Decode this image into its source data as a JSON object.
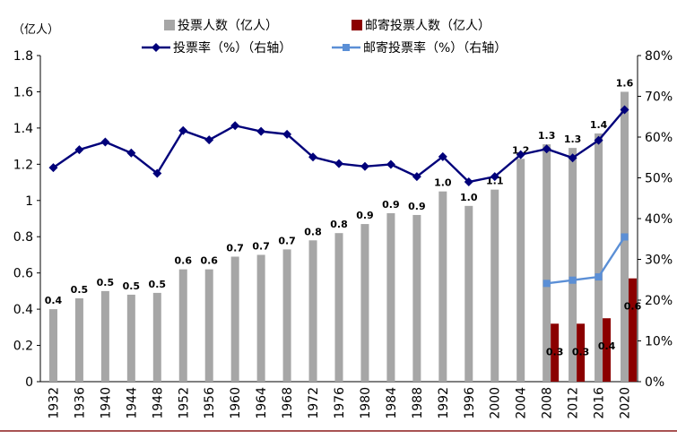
{
  "chart_data": {
    "type": "bar",
    "y_unit_label": "（亿人）",
    "categories": [
      "1932",
      "1936",
      "1940",
      "1944",
      "1948",
      "1952",
      "1956",
      "1960",
      "1964",
      "1968",
      "1972",
      "1976",
      "1980",
      "1984",
      "1988",
      "1992",
      "1996",
      "2000",
      "2004",
      "2008",
      "2012",
      "2016",
      "2020"
    ],
    "series": [
      {
        "name": "投票人数（亿人）",
        "kind": "bar",
        "axis": "left",
        "color": "#a6a6a6",
        "values": [
          0.4,
          0.46,
          0.5,
          0.48,
          0.49,
          0.62,
          0.62,
          0.69,
          0.7,
          0.73,
          0.78,
          0.82,
          0.87,
          0.93,
          0.92,
          1.05,
          0.97,
          1.06,
          1.23,
          1.31,
          1.29,
          1.37,
          1.6
        ],
        "labels": [
          "0.4",
          "0.5",
          "0.5",
          "0.5",
          "0.5",
          "0.6",
          "0.6",
          "0.7",
          "0.7",
          "0.7",
          "0.8",
          "0.8",
          "0.9",
          "0.9",
          "0.9",
          "1.0",
          "1.0",
          "1.1",
          "1.2",
          "1.3",
          "1.3",
          "1.4",
          "1.6"
        ]
      },
      {
        "name": "邮寄投票人数（亿人）",
        "kind": "bar",
        "axis": "left",
        "color": "#8b0000",
        "values": [
          null,
          null,
          null,
          null,
          null,
          null,
          null,
          null,
          null,
          null,
          null,
          null,
          null,
          null,
          null,
          null,
          null,
          null,
          null,
          0.32,
          0.32,
          0.35,
          0.57
        ],
        "labels": [
          null,
          null,
          null,
          null,
          null,
          null,
          null,
          null,
          null,
          null,
          null,
          null,
          null,
          null,
          null,
          null,
          null,
          null,
          null,
          "0.3",
          "0.3",
          "0.4",
          "0.6"
        ]
      },
      {
        "name": "投票率（%）（右轴）",
        "kind": "line",
        "axis": "right",
        "color": "#00007a",
        "marker": "diamond",
        "values": [
          52.5,
          56.9,
          58.8,
          56.1,
          51.1,
          61.6,
          59.3,
          62.8,
          61.4,
          60.7,
          55.1,
          53.5,
          52.8,
          53.3,
          50.3,
          55.2,
          49.0,
          50.3,
          55.7,
          57.1,
          54.9,
          59.2,
          66.7
        ]
      },
      {
        "name": "邮寄投票率（%）（右轴）",
        "kind": "line",
        "axis": "right",
        "color": "#5b8fd6",
        "marker": "square",
        "values": [
          null,
          null,
          null,
          null,
          null,
          null,
          null,
          null,
          null,
          null,
          null,
          null,
          null,
          null,
          null,
          null,
          null,
          null,
          null,
          24.1,
          24.9,
          25.7,
          35.5
        ]
      }
    ],
    "ylim_left": [
      0,
      1.8
    ],
    "yticks_left": [
      "0",
      "0.2",
      "0.4",
      "0.6",
      "0.8",
      "1",
      "1.2",
      "1.4",
      "1.6",
      "1.8"
    ],
    "ylim_right": [
      0,
      80
    ],
    "yticks_right": [
      "0%",
      "10%",
      "20%",
      "30%",
      "40%",
      "50%",
      "60%",
      "70%",
      "80%"
    ],
    "grid": false,
    "legend_position": "top"
  }
}
